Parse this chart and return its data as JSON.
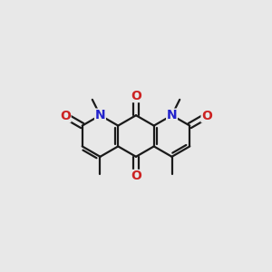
{
  "bg_color": "#e8e8e8",
  "bond_color": "#1a1a1a",
  "N_color": "#2222cc",
  "O_color": "#cc2222",
  "bond_width": 1.6,
  "figsize": [
    3.0,
    3.0
  ],
  "dpi": 100,
  "xlim": [
    -1.0,
    1.0
  ],
  "ylim": [
    -0.75,
    0.75
  ]
}
